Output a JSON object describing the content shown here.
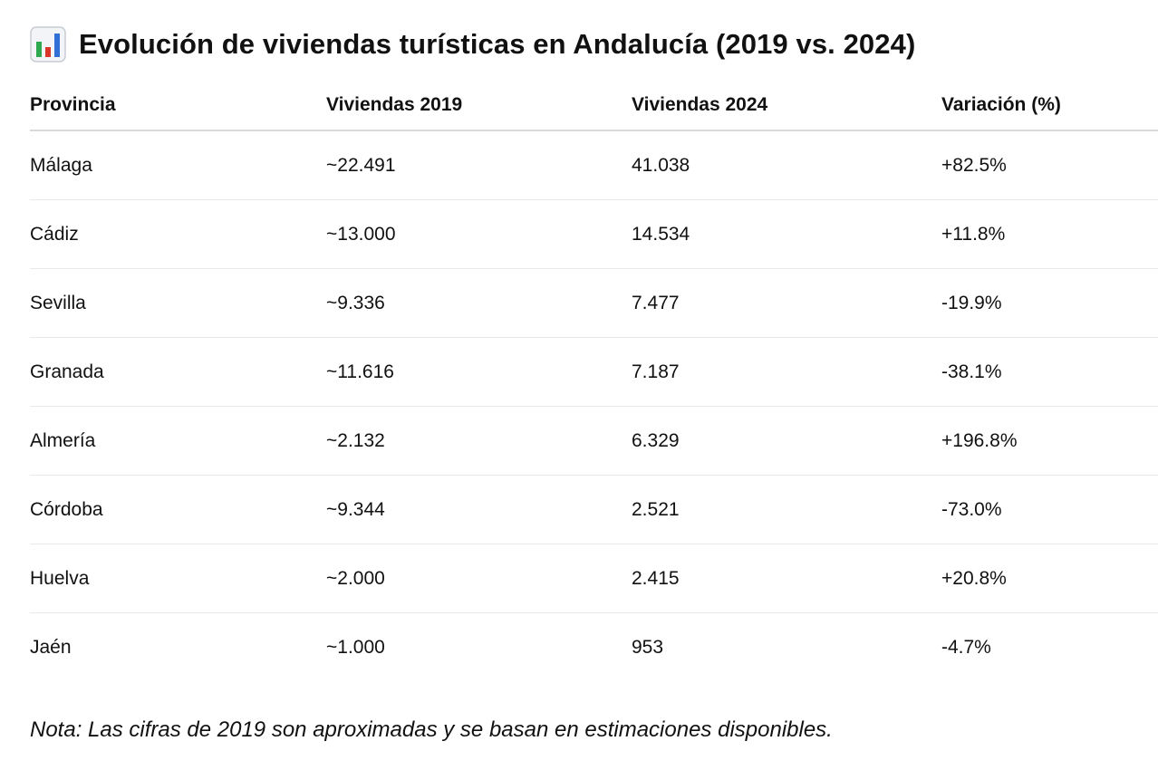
{
  "title": {
    "icon": "bar-chart-icon",
    "text": "Evolución de viviendas turísticas en Andalucía (2019 vs. 2024)"
  },
  "table": {
    "headers": [
      "Provincia",
      "Viviendas 2019",
      "Viviendas 2024",
      "Variación (%)"
    ],
    "rows": [
      [
        "Málaga",
        "~22.491",
        "41.038",
        "+82.5%"
      ],
      [
        "Cádiz",
        "~13.000",
        "14.534",
        "+11.8%"
      ],
      [
        "Sevilla",
        "~9.336",
        "7.477",
        "-19.9%"
      ],
      [
        "Granada",
        "~11.616",
        "7.187",
        "-38.1%"
      ],
      [
        "Almería",
        "~2.132",
        "6.329",
        "+196.8%"
      ],
      [
        "Córdoba",
        "~9.344",
        "2.521",
        "-73.0%"
      ],
      [
        "Huelva",
        "~2.000",
        "2.415",
        "+20.8%"
      ],
      [
        "Jaén",
        "~1.000",
        "953",
        "-4.7%"
      ]
    ]
  },
  "note": "Nota: Las cifras de 2019 son aproximadas y se basan en estimaciones disponibles.",
  "colors": {
    "icon_green": "#2fa84f",
    "icon_red": "#d9352b",
    "icon_blue": "#2f6fd6",
    "icon_frame": "#c7ccd3"
  }
}
